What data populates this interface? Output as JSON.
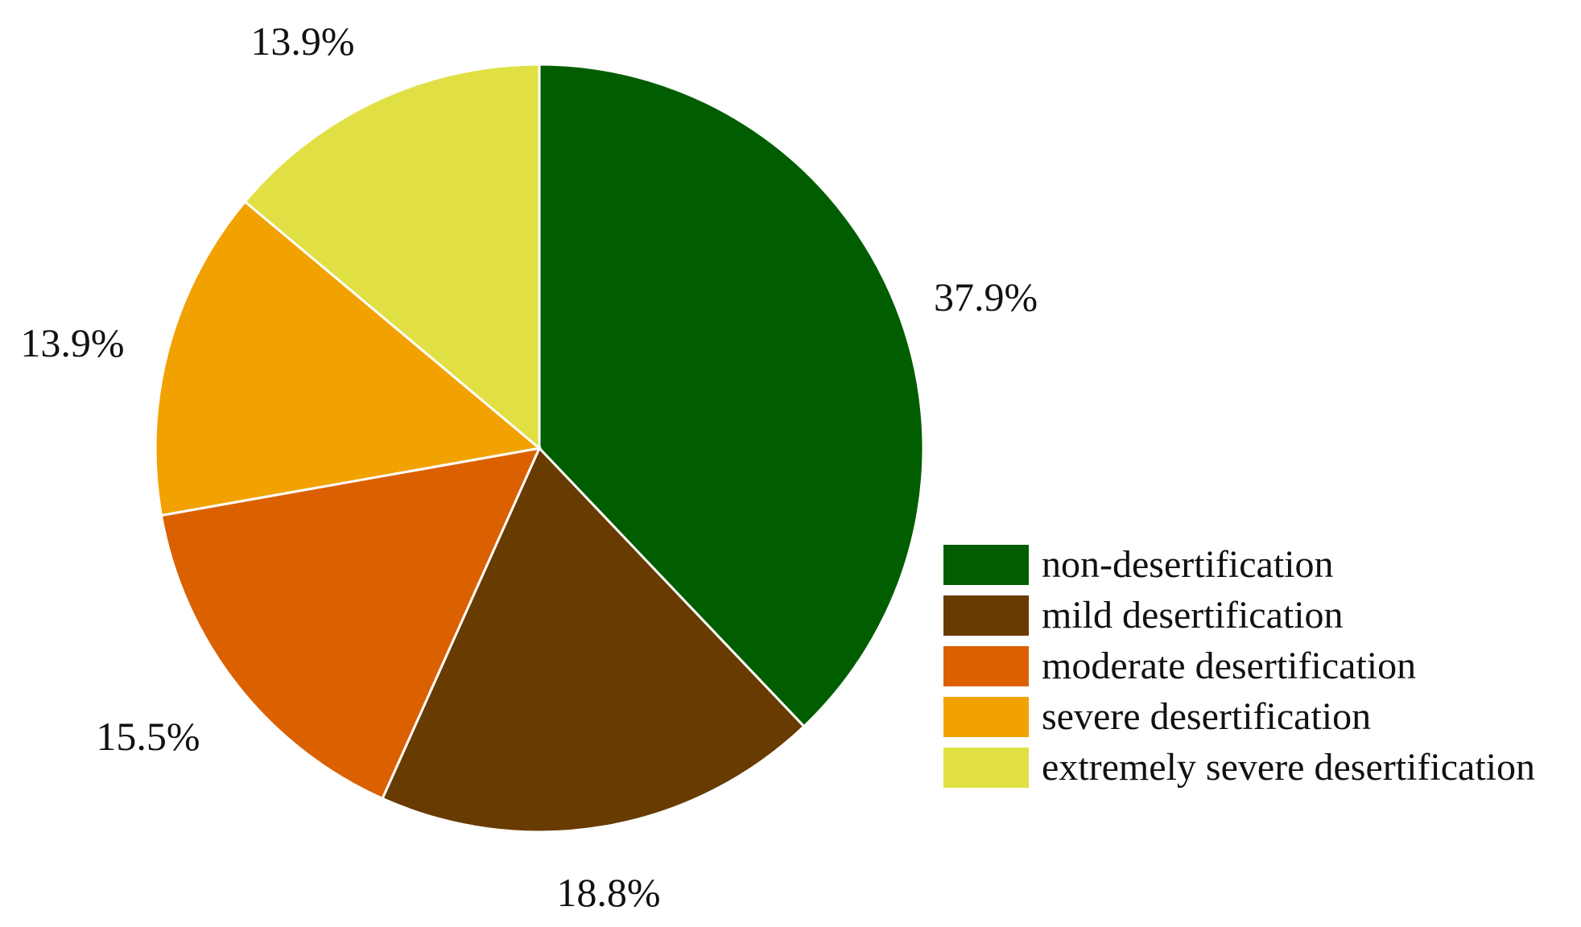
{
  "chart_data": {
    "type": "pie",
    "title": "",
    "legend_position": "bottom-right",
    "slices": [
      {
        "label": "non-desertification",
        "value": 37.9,
        "value_label": "37.9%",
        "color": "#005E00"
      },
      {
        "label": "mild desertification",
        "value": 18.8,
        "value_label": "18.8%",
        "color": "#683B00"
      },
      {
        "label": "moderate desertification",
        "value": 15.5,
        "value_label": "15.5%",
        "color": "#DB6100"
      },
      {
        "label": "severe desertification",
        "value": 13.9,
        "value_label": "13.9%",
        "color": "#F2A200"
      },
      {
        "label": "extremely severe desertification",
        "value": 13.9,
        "value_label": "13.9%",
        "color": "#E0E044"
      }
    ]
  }
}
